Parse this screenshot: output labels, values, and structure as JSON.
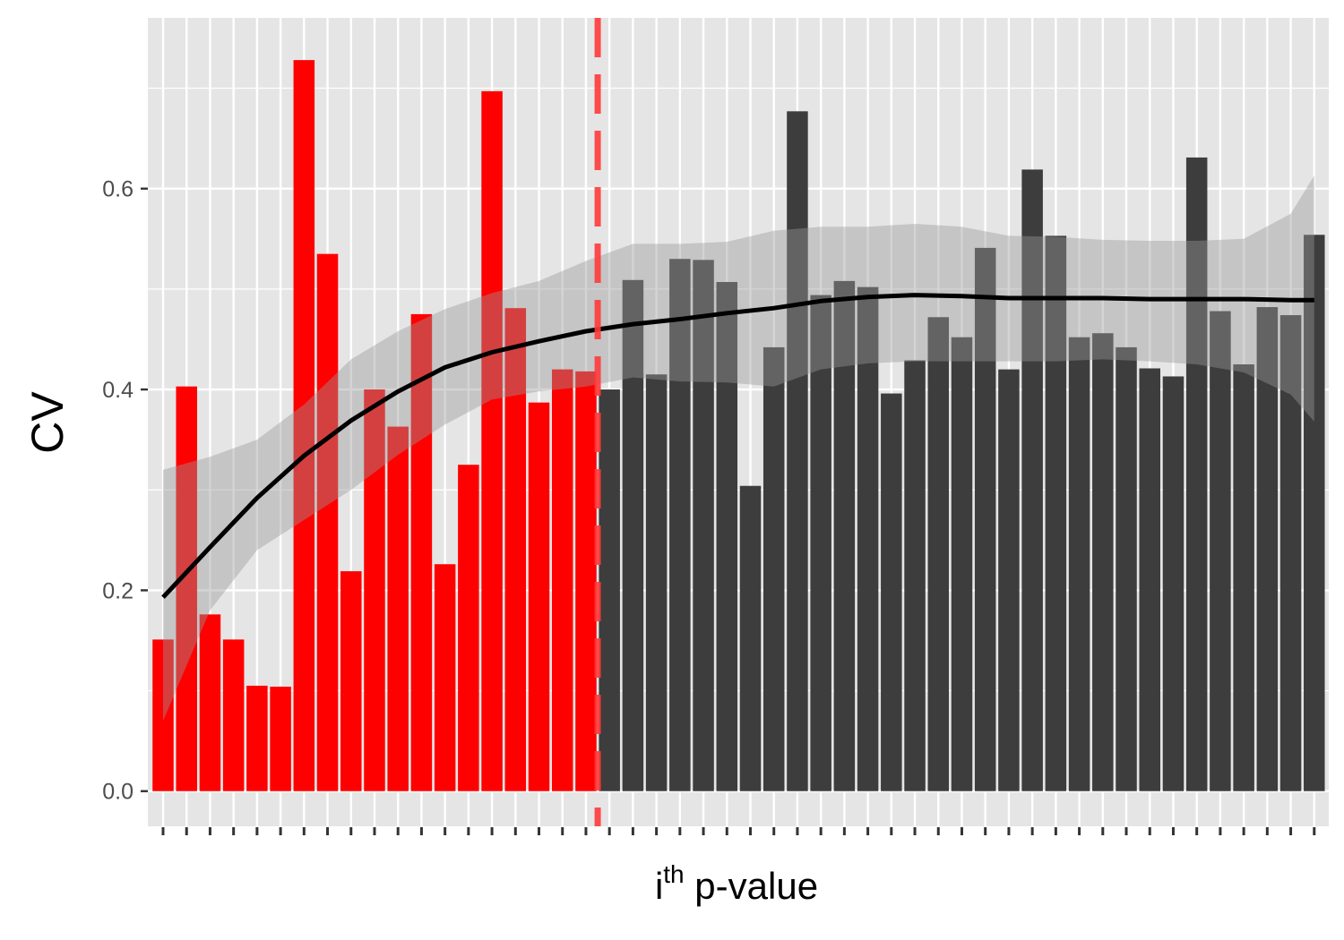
{
  "chart_data": {
    "type": "bar",
    "title": "",
    "xlabel": {
      "main": "i",
      "superscript": "th",
      "rest": " p-value"
    },
    "ylabel": "CV",
    "ylim": [
      -0.035,
      0.77
    ],
    "yticks": [
      0.0,
      0.2,
      0.4,
      0.6
    ],
    "ytick_labels": [
      "0.0",
      "0.2",
      "0.4",
      "0.6"
    ],
    "x_tick_labels_shown": false,
    "grid": true,
    "legend": "none",
    "categories": [
      1,
      2,
      3,
      4,
      5,
      6,
      7,
      8,
      9,
      10,
      11,
      12,
      13,
      14,
      15,
      16,
      17,
      18,
      19,
      20,
      21,
      22,
      23,
      24,
      25,
      26,
      27,
      28,
      29,
      30,
      31,
      32,
      33,
      34,
      35,
      36,
      37,
      38,
      39,
      40,
      41,
      42,
      43,
      44,
      45,
      46,
      47,
      48,
      49,
      50
    ],
    "values": [
      0.151,
      0.403,
      0.176,
      0.151,
      0.105,
      0.104,
      0.728,
      0.535,
      0.219,
      0.4,
      0.363,
      0.475,
      0.226,
      0.325,
      0.697,
      0.481,
      0.387,
      0.42,
      0.418,
      0.4,
      0.509,
      0.415,
      0.53,
      0.529,
      0.507,
      0.304,
      0.442,
      0.677,
      0.494,
      0.508,
      0.502,
      0.396,
      0.429,
      0.472,
      0.452,
      0.541,
      0.42,
      0.619,
      0.553,
      0.452,
      0.456,
      0.442,
      0.421,
      0.413,
      0.631,
      0.478,
      0.425,
      0.482,
      0.474,
      0.554
    ],
    "significant_count": 19,
    "threshold_after_index": 19,
    "colors": {
      "significant": "#ff0000",
      "other": "#3d3d3d",
      "panel": "#e5e5e5",
      "grid": "#ffffff",
      "threshold": "#ff3a3a",
      "smooth": "#000000",
      "ribbon": "#999999"
    },
    "smooth": {
      "method": "loess",
      "x": [
        1,
        3,
        5,
        7,
        9,
        11,
        13,
        15,
        17,
        19,
        21,
        23,
        25,
        27,
        29,
        31,
        33,
        35,
        37,
        39,
        41,
        43,
        45,
        47,
        49,
        50
      ],
      "y": [
        0.193,
        0.243,
        0.292,
        0.334,
        0.369,
        0.398,
        0.422,
        0.437,
        0.448,
        0.458,
        0.465,
        0.47,
        0.476,
        0.481,
        0.488,
        0.492,
        0.494,
        0.493,
        0.491,
        0.491,
        0.491,
        0.49,
        0.49,
        0.49,
        0.489,
        0.489
      ],
      "lower": [
        0.07,
        0.18,
        0.24,
        0.27,
        0.3,
        0.335,
        0.365,
        0.39,
        0.398,
        0.403,
        0.412,
        0.408,
        0.407,
        0.403,
        0.42,
        0.426,
        0.428,
        0.428,
        0.428,
        0.428,
        0.43,
        0.428,
        0.425,
        0.417,
        0.395,
        0.368
      ],
      "upper": [
        0.32,
        0.333,
        0.35,
        0.385,
        0.43,
        0.458,
        0.48,
        0.496,
        0.508,
        0.528,
        0.545,
        0.545,
        0.547,
        0.558,
        0.562,
        0.562,
        0.565,
        0.562,
        0.553,
        0.552,
        0.549,
        0.548,
        0.548,
        0.55,
        0.575,
        0.613
      ]
    }
  }
}
